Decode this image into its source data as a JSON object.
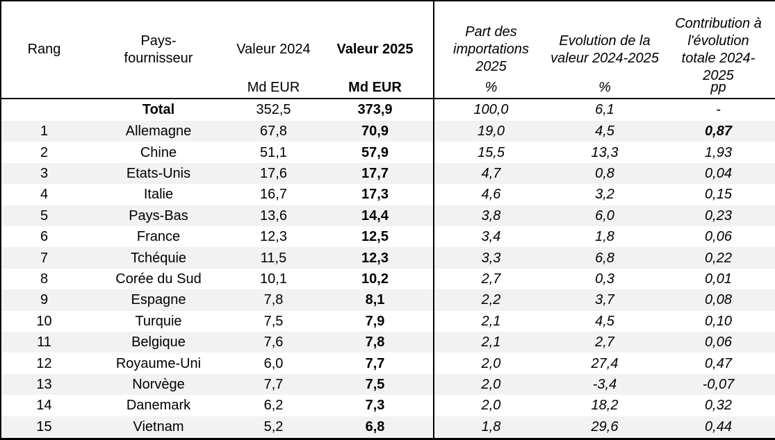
{
  "colors": {
    "stripe": "#f2f2f2",
    "border": "#000000",
    "text": "#000000",
    "bg": "#ffffff"
  },
  "chart_data": {
    "type": "table",
    "title": "",
    "columns": [
      {
        "key": "rank",
        "label": "Rang",
        "unit": "",
        "emphasis": "normal"
      },
      {
        "key": "country",
        "label": "Pays-\nfournisseur",
        "unit": "",
        "emphasis": "normal"
      },
      {
        "key": "value2024",
        "label": "Valeur 2024",
        "unit": "Md EUR",
        "emphasis": "normal"
      },
      {
        "key": "value2025",
        "label": "Valeur 2025",
        "unit": "Md EUR",
        "emphasis": "bold"
      },
      {
        "key": "share2025",
        "label": "Part des\nimportations\n2025",
        "unit": "%",
        "emphasis": "italic"
      },
      {
        "key": "evolution",
        "label": "Evolution de la\nvaleur 2024-2025",
        "unit": "%",
        "emphasis": "italic"
      },
      {
        "key": "contribution",
        "label": "Contribution à\nl'évolution\ntotale 2024-\n2025",
        "unit": "pp",
        "emphasis": "italic"
      }
    ],
    "rows": [
      {
        "rank": "",
        "country": "Total",
        "value2024": "352,5",
        "value2025": "373,9",
        "share2025": "100,0",
        "evolution": "6,1",
        "contribution": "-",
        "total": true
      },
      {
        "rank": "1",
        "country": "Allemagne",
        "value2024": "67,8",
        "value2025": "70,9",
        "share2025": "19,0",
        "evolution": "4,5",
        "contribution": "0,87",
        "contribution_bold": true
      },
      {
        "rank": "2",
        "country": "Chine",
        "value2024": "51,1",
        "value2025": "57,9",
        "share2025": "15,5",
        "evolution": "13,3",
        "contribution": "1,93"
      },
      {
        "rank": "3",
        "country": "Etats-Unis",
        "value2024": "17,6",
        "value2025": "17,7",
        "share2025": "4,7",
        "evolution": "0,8",
        "contribution": "0,04"
      },
      {
        "rank": "4",
        "country": "Italie",
        "value2024": "16,7",
        "value2025": "17,3",
        "share2025": "4,6",
        "evolution": "3,2",
        "contribution": "0,15"
      },
      {
        "rank": "5",
        "country": "Pays-Bas",
        "value2024": "13,6",
        "value2025": "14,4",
        "share2025": "3,8",
        "evolution": "6,0",
        "contribution": "0,23"
      },
      {
        "rank": "6",
        "country": "France",
        "value2024": "12,3",
        "value2025": "12,5",
        "share2025": "3,4",
        "evolution": "1,8",
        "contribution": "0,06"
      },
      {
        "rank": "7",
        "country": "Tchéquie",
        "value2024": "11,5",
        "value2025": "12,3",
        "share2025": "3,3",
        "evolution": "6,8",
        "contribution": "0,22"
      },
      {
        "rank": "8",
        "country": "Corée du Sud",
        "value2024": "10,1",
        "value2025": "10,2",
        "share2025": "2,7",
        "evolution": "0,3",
        "contribution": "0,01"
      },
      {
        "rank": "9",
        "country": "Espagne",
        "value2024": "7,8",
        "value2025": "8,1",
        "share2025": "2,2",
        "evolution": "3,7",
        "contribution": "0,08"
      },
      {
        "rank": "10",
        "country": "Turquie",
        "value2024": "7,5",
        "value2025": "7,9",
        "share2025": "2,1",
        "evolution": "4,5",
        "contribution": "0,10"
      },
      {
        "rank": "11",
        "country": "Belgique",
        "value2024": "7,6",
        "value2025": "7,8",
        "share2025": "2,1",
        "evolution": "2,7",
        "contribution": "0,06"
      },
      {
        "rank": "12",
        "country": "Royaume-Uni",
        "value2024": "6,0",
        "value2025": "7,7",
        "share2025": "2,0",
        "evolution": "27,4",
        "contribution": "0,47"
      },
      {
        "rank": "13",
        "country": "Norvège",
        "value2024": "7,7",
        "value2025": "7,5",
        "share2025": "2,0",
        "evolution": "-3,4",
        "contribution": "-0,07"
      },
      {
        "rank": "14",
        "country": "Danemark",
        "value2024": "6,2",
        "value2025": "7,3",
        "share2025": "2,0",
        "evolution": "18,2",
        "contribution": "0,32"
      },
      {
        "rank": "15",
        "country": "Vietnam",
        "value2024": "5,2",
        "value2025": "6,8",
        "share2025": "1,8",
        "evolution": "29,6",
        "contribution": "0,44"
      }
    ]
  }
}
